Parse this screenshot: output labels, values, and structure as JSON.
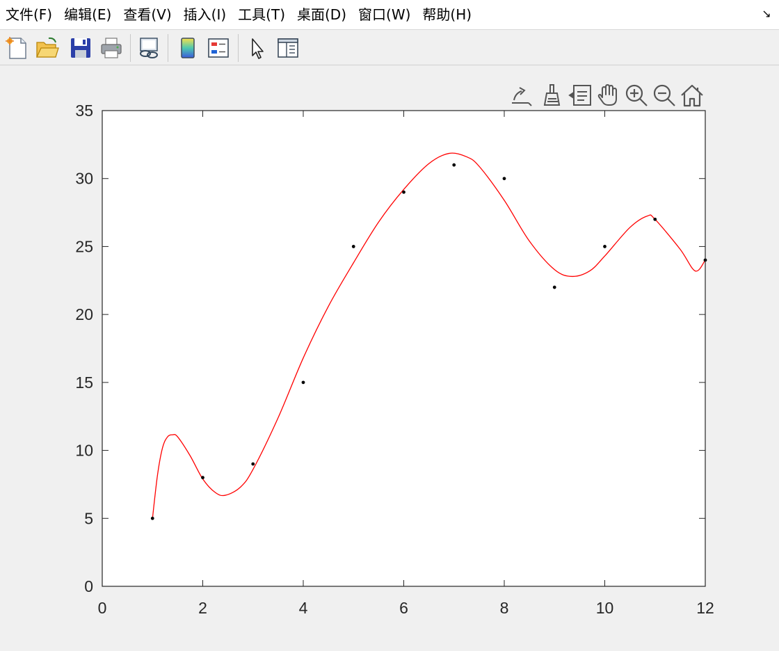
{
  "menubar": {
    "items": [
      {
        "label": "文件(F)",
        "id": "file"
      },
      {
        "label": "编辑(E)",
        "id": "edit"
      },
      {
        "label": "查看(V)",
        "id": "view"
      },
      {
        "label": "插入(I)",
        "id": "insert"
      },
      {
        "label": "工具(T)",
        "id": "tools"
      },
      {
        "label": "桌面(D)",
        "id": "desktop"
      },
      {
        "label": "窗口(W)",
        "id": "window"
      },
      {
        "label": "帮助(H)",
        "id": "help"
      }
    ],
    "collapse_glyph": "↘"
  },
  "toolbar": {
    "buttons": [
      {
        "name": "new-figure-icon"
      },
      {
        "name": "open-file-icon"
      },
      {
        "name": "save-icon"
      },
      {
        "name": "print-icon"
      },
      {
        "name": "link-plot-icon"
      },
      {
        "name": "colorbar-icon"
      },
      {
        "name": "legend-icon"
      },
      {
        "name": "edit-plot-arrow-icon"
      },
      {
        "name": "property-inspector-icon"
      }
    ]
  },
  "axes_toolbar": {
    "buttons": [
      {
        "name": "export-icon"
      },
      {
        "name": "brush-icon"
      },
      {
        "name": "data-tips-icon"
      },
      {
        "name": "pan-hand-icon"
      },
      {
        "name": "zoom-in-icon"
      },
      {
        "name": "zoom-out-icon"
      },
      {
        "name": "home-icon"
      }
    ]
  },
  "chart_data": {
    "type": "scatter",
    "title": "",
    "xlabel": "",
    "ylabel": "",
    "xlim": [
      0,
      12
    ],
    "ylim": [
      0,
      35
    ],
    "xticks": [
      "0",
      "2",
      "4",
      "6",
      "8",
      "10",
      "12"
    ],
    "yticks": [
      "0",
      "5",
      "10",
      "15",
      "20",
      "25",
      "30",
      "35"
    ],
    "grid": false,
    "series": [
      {
        "type": "scatter",
        "color": "#000000",
        "x": [
          1,
          2,
          3,
          4,
          5,
          6,
          7,
          8,
          9,
          10,
          11,
          12
        ],
        "y": [
          5,
          8,
          9,
          15,
          25,
          29,
          31,
          30,
          22,
          25,
          27,
          24
        ]
      },
      {
        "type": "line",
        "color": "#ff0000",
        "x": [
          1,
          1.1,
          1.2,
          1.3,
          1.4,
          1.5,
          1.75,
          2,
          2.25,
          2.45,
          2.75,
          3,
          3.5,
          4,
          4.5,
          5,
          5.5,
          6,
          6.5,
          6.9,
          7.25,
          7.5,
          8,
          8.5,
          9,
          9.35,
          9.7,
          10,
          10.5,
          10.85,
          11,
          11.5,
          11.8,
          12
        ],
        "y": [
          5,
          8.2,
          10.2,
          11,
          11.15,
          11,
          9.6,
          7.9,
          6.9,
          6.7,
          7.3,
          8.6,
          12.4,
          16.8,
          20.6,
          23.8,
          26.8,
          29.2,
          31.1,
          31.85,
          31.6,
          30.9,
          28.4,
          25.4,
          23.3,
          22.8,
          23.2,
          24.3,
          26.4,
          27.25,
          27,
          24.8,
          23.2,
          24
        ]
      }
    ]
  }
}
